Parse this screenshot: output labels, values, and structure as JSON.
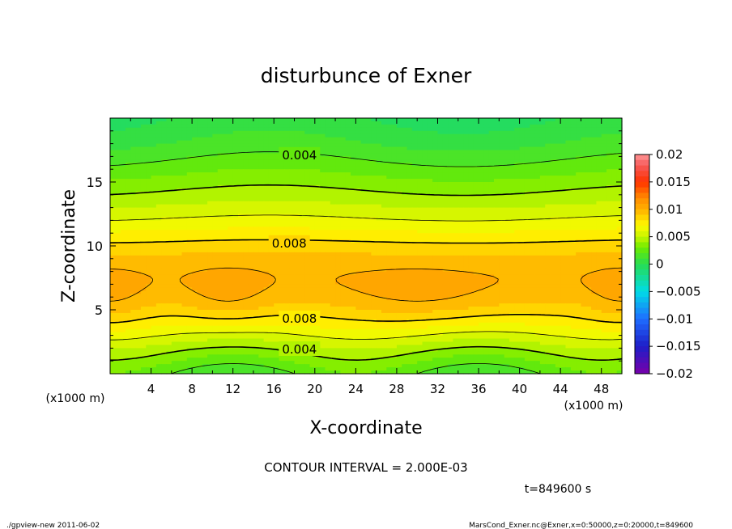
{
  "chart_data": {
    "type": "heatmap",
    "title": "disturbunce of Exner",
    "xlabel": "X-coordinate",
    "ylabel": "Z-coordinate",
    "x_unit_left": "(x1000 m)",
    "x_unit_right": "(x1000 m)",
    "xlim": [
      0,
      50
    ],
    "ylim": [
      0,
      20
    ],
    "x_ticks": [
      4,
      8,
      12,
      16,
      20,
      24,
      28,
      32,
      36,
      40,
      44,
      48
    ],
    "y_ticks": [
      5,
      10,
      15
    ],
    "colorbar": {
      "vmin": -0.02,
      "vmax": 0.02,
      "tick_values": [
        0.02,
        0.015,
        0.01,
        0.005,
        0,
        -0.005,
        -0.01,
        -0.015,
        -0.02
      ],
      "tick_labels": [
        "0.02",
        "0.015",
        "0.01",
        "0.005",
        "0",
        "−0.005",
        "−0.01",
        "−0.015",
        "−0.02"
      ]
    },
    "contour_labels": [
      {
        "text": "0.004",
        "x": 18.5,
        "z": 17.1
      },
      {
        "text": "0.008",
        "x": 17.5,
        "z": 10.2
      },
      {
        "text": "0.008",
        "x": 18.5,
        "z": 4.3
      },
      {
        "text": "0.004",
        "x": 18.5,
        "z": 1.9
      }
    ],
    "contour_interval_text": "CONTOUR INTERVAL = 2.000E-03",
    "time_text": "t=849600 s"
  },
  "footer": {
    "left": "./gpview-new   2011-06-02",
    "right": "MarsCond_Exner.nc@Exner,x=0:50000,z=0:20000,t=849600"
  },
  "colors": {
    "high": "#ff8c00",
    "mid": "#ffff00",
    "zero": "#33dd00",
    "low": "#6600aa"
  }
}
